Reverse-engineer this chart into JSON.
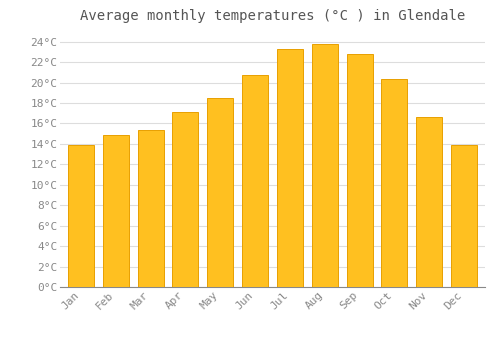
{
  "title": "Average monthly temperatures (°C ) in Glendale",
  "months": [
    "Jan",
    "Feb",
    "Mar",
    "Apr",
    "May",
    "Jun",
    "Jul",
    "Aug",
    "Sep",
    "Oct",
    "Nov",
    "Dec"
  ],
  "values": [
    13.9,
    14.9,
    15.4,
    17.1,
    18.5,
    20.7,
    23.3,
    23.8,
    22.8,
    20.4,
    16.6,
    13.9
  ],
  "bar_color": "#FFC020",
  "bar_edge_color": "#E8A000",
  "background_color": "#FFFFFF",
  "grid_color": "#DDDDDD",
  "ylim": [
    0,
    25
  ],
  "yticks": [
    0,
    2,
    4,
    6,
    8,
    10,
    12,
    14,
    16,
    18,
    20,
    22,
    24
  ],
  "title_fontsize": 10,
  "tick_fontsize": 8,
  "title_color": "#555555",
  "tick_color": "#888888",
  "font_family": "monospace",
  "bar_width": 0.75
}
